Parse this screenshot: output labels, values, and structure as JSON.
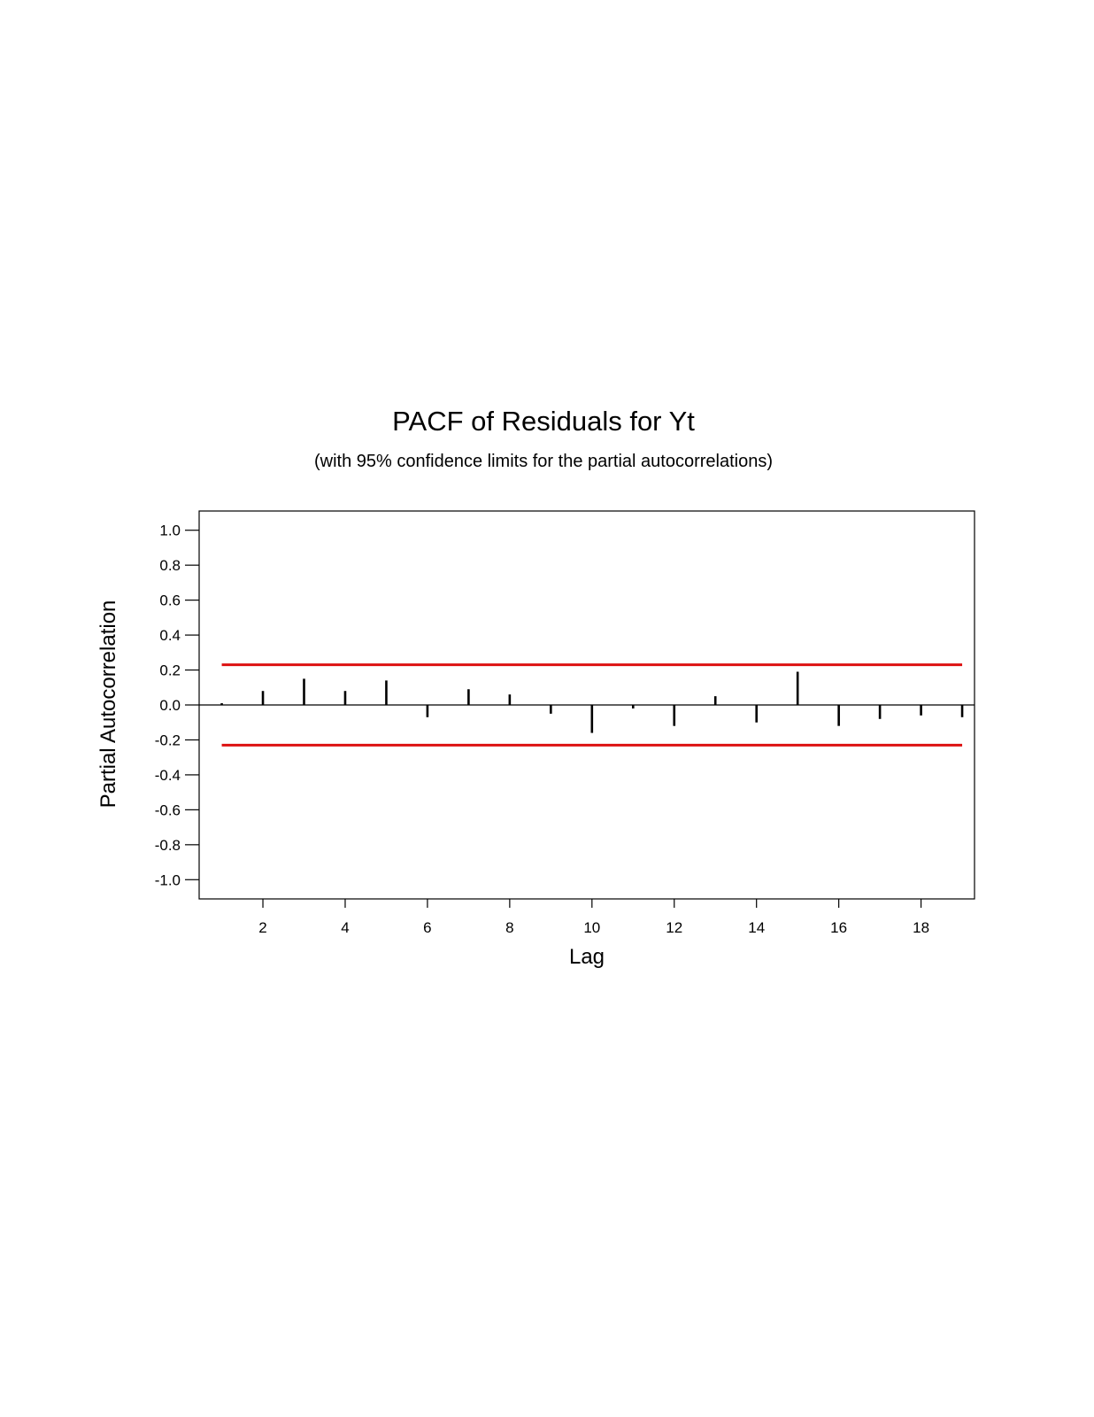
{
  "chart_data": {
    "type": "bar",
    "title": "PACF of Residuals for Yt",
    "subtitle": "(with 95% confidence limits for the partial autocorrelations)",
    "xlabel": "Lag",
    "ylabel": "Partial Autocorrelation",
    "xlim": [
      0.45,
      19.3
    ],
    "ylim": [
      -1.11,
      1.11
    ],
    "x_ticks": [
      2,
      4,
      6,
      8,
      10,
      12,
      14,
      16,
      18
    ],
    "x_tick_labels": [
      "2",
      "4",
      "6",
      "8",
      "10",
      "12",
      "14",
      "16",
      "18"
    ],
    "y_ticks": [
      1.0,
      0.8,
      0.6,
      0.4,
      0.2,
      0.0,
      -0.2,
      -0.4,
      -0.6,
      -0.8,
      -1.0
    ],
    "y_tick_labels": [
      "1.0",
      "0.8",
      "0.6",
      "0.4",
      "0.2",
      "0.0",
      "-0.2",
      "-0.4",
      "-0.6",
      "-0.8",
      "-1.0"
    ],
    "lags": [
      1,
      2,
      3,
      4,
      5,
      6,
      7,
      8,
      9,
      10,
      11,
      12,
      13,
      14,
      15,
      16,
      17,
      18,
      19
    ],
    "values": [
      0.01,
      0.08,
      0.15,
      0.08,
      0.14,
      -0.07,
      0.09,
      0.06,
      -0.05,
      -0.16,
      -0.02,
      -0.12,
      0.05,
      -0.1,
      0.19,
      -0.12,
      -0.08,
      -0.06,
      -0.07
    ],
    "confidence_limits": {
      "upper": 0.23,
      "lower": -0.23,
      "color": "#dd1111"
    },
    "bar_color": "#000000",
    "grid": false
  }
}
